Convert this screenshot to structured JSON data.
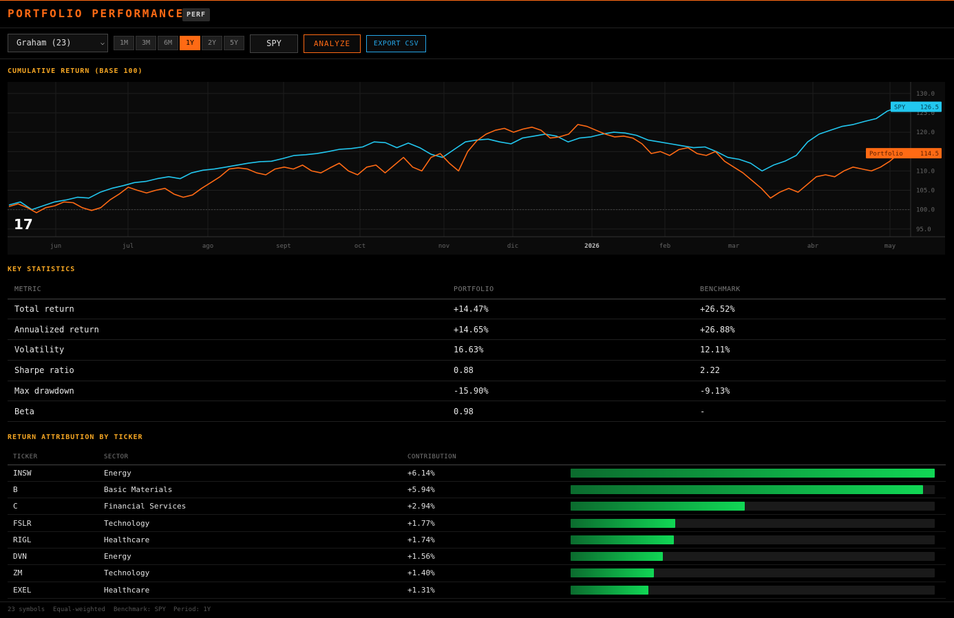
{
  "header": {
    "title": "PORTFOLIO PERFORMANCE",
    "badge": "PERF"
  },
  "toolbar": {
    "portfolio_select": "Graham (23)",
    "ranges": [
      "1M",
      "3M",
      "6M",
      "1Y",
      "2Y",
      "5Y"
    ],
    "active_range": "1Y",
    "benchmark": "SPY",
    "analyze_label": "ANALYZE",
    "export_label": "EXPORT CSV"
  },
  "chart": {
    "section_title": "CUMULATIVE RETURN (BASE 100)"
  },
  "chart_data": {
    "type": "line",
    "title": "CUMULATIVE RETURN (BASE 100)",
    "x_ticks": [
      "jun",
      "jul",
      "ago",
      "sept",
      "oct",
      "nov",
      "dic",
      "2026",
      "feb",
      "mar",
      "abr",
      "may"
    ],
    "y_ticks": [
      95.0,
      100.0,
      105.0,
      110.0,
      115.0,
      120.0,
      125.0,
      130.0
    ],
    "ylim": [
      93.0,
      133.0
    ],
    "grid": true,
    "baseline": 100,
    "colors": {
      "SPY": "#22c7ef",
      "Portfolio": "#ff6a14"
    },
    "series": [
      {
        "name": "SPY",
        "end_label": "126.5",
        "values": [
          101.2,
          102.0,
          100.0,
          101.0,
          102.0,
          102.5,
          103.2,
          103.0,
          104.5,
          105.5,
          106.2,
          107.0,
          107.3,
          108.0,
          108.5,
          108.0,
          109.5,
          110.2,
          110.5,
          111.0,
          111.5,
          112.0,
          112.4,
          112.5,
          113.2,
          114.0,
          114.2,
          114.5,
          115.0,
          115.6,
          115.8,
          116.2,
          117.5,
          117.3,
          116.0,
          117.2,
          116.0,
          114.3,
          113.5,
          115.5,
          117.5,
          118.0,
          118.2,
          117.5,
          117.0,
          118.5,
          119.0,
          119.5,
          119.0,
          117.5,
          118.5,
          118.8,
          119.5,
          120.0,
          119.8,
          119.2,
          118.0,
          117.5,
          117.0,
          116.5,
          116.0,
          116.2,
          115.0,
          113.5,
          113.0,
          112.0,
          110.0,
          111.5,
          112.5,
          114.0,
          117.5,
          119.5,
          120.5,
          121.5,
          122.0,
          122.8,
          123.5,
          125.5,
          126.5
        ]
      },
      {
        "name": "Portfolio",
        "end_label": "114.5",
        "values": [
          100.8,
          101.5,
          100.5,
          99.2,
          100.5,
          101.0,
          102.0,
          101.8,
          100.5,
          99.8,
          100.5,
          102.5,
          104.0,
          105.8,
          105.0,
          104.3,
          105.0,
          105.5,
          104.0,
          103.2,
          103.8,
          105.5,
          107.0,
          108.5,
          110.5,
          110.8,
          110.5,
          109.5,
          109.0,
          110.5,
          111.0,
          110.5,
          111.5,
          110.0,
          109.5,
          110.8,
          112.0,
          110.0,
          109.0,
          111.0,
          111.5,
          109.5,
          111.5,
          113.5,
          111.0,
          110.0,
          113.5,
          114.5,
          112.0,
          110.0,
          115.0,
          117.8,
          119.5,
          120.5,
          121.0,
          120.0,
          120.8,
          121.3,
          120.5,
          118.5,
          118.8,
          119.5,
          122.0,
          121.5,
          120.5,
          119.5,
          118.8,
          119.0,
          118.5,
          117.0,
          114.5,
          115.0,
          114.0,
          115.5,
          116.0,
          114.5,
          114.0,
          115.0,
          112.5,
          111.0,
          109.5,
          107.5,
          105.5,
          103.0,
          104.5,
          105.5,
          104.5,
          106.5,
          108.5,
          109.0,
          108.5,
          110.0,
          111.0,
          110.5,
          110.0,
          111.0,
          112.5,
          114.5
        ]
      }
    ]
  },
  "stats": {
    "section_title": "KEY STATISTICS",
    "headers": [
      "METRIC",
      "PORTFOLIO",
      "BENCHMARK"
    ],
    "rows": [
      [
        "Total return",
        "+14.47%",
        "+26.52%"
      ],
      [
        "Annualized return",
        "+14.65%",
        "+26.88%"
      ],
      [
        "Volatility",
        "16.63%",
        "12.11%"
      ],
      [
        "Sharpe ratio",
        "0.88",
        "2.22"
      ],
      [
        "Max drawdown",
        "-15.90%",
        "-9.13%"
      ],
      [
        "Beta",
        "0.98",
        "-"
      ]
    ]
  },
  "attribution": {
    "section_title": "RETURN ATTRIBUTION BY TICKER",
    "headers": [
      "TICKER",
      "SECTOR",
      "CONTRIBUTION"
    ],
    "rows": [
      {
        "ticker": "INSW",
        "sector": "Energy",
        "contribution": "+6.14%",
        "value": 6.14
      },
      {
        "ticker": "B",
        "sector": "Basic Materials",
        "contribution": "+5.94%",
        "value": 5.94
      },
      {
        "ticker": "C",
        "sector": "Financial Services",
        "contribution": "+2.94%",
        "value": 2.94
      },
      {
        "ticker": "FSLR",
        "sector": "Technology",
        "contribution": "+1.77%",
        "value": 1.77
      },
      {
        "ticker": "RIGL",
        "sector": "Healthcare",
        "contribution": "+1.74%",
        "value": 1.74
      },
      {
        "ticker": "DVN",
        "sector": "Energy",
        "contribution": "+1.56%",
        "value": 1.56
      },
      {
        "ticker": "ZM",
        "sector": "Technology",
        "contribution": "+1.40%",
        "value": 1.4
      },
      {
        "ticker": "EXEL",
        "sector": "Healthcare",
        "contribution": "+1.31%",
        "value": 1.31
      }
    ]
  },
  "footer": {
    "symbols": "23 symbols",
    "weighting": "Equal-weighted",
    "benchmark": "Benchmark: SPY",
    "period": "Period: 1Y"
  }
}
